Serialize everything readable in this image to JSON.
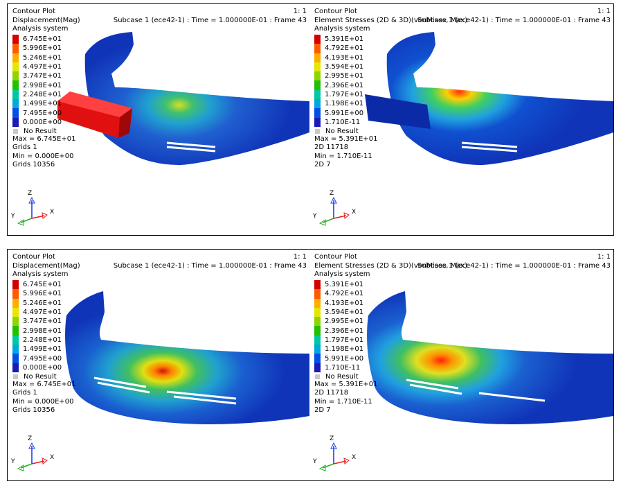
{
  "panels": [
    {
      "title": "Contour Plot",
      "result": "Displacement(Mag)",
      "system": "Analysis system",
      "scale": "1: 1",
      "subcase": "Subcase 1 (ece42-1) : Time = 1.000000E-01 : Frame 43",
      "legend": [
        "6.745E+01",
        "5.996E+01",
        "5.246E+01",
        "4.497E+01",
        "3.747E+01",
        "2.998E+01",
        "2.248E+01",
        "1.499E+01",
        "7.495E+00",
        "0.000E+00"
      ],
      "no_result": "No Result",
      "stats": [
        "Max = 6.745E+01",
        "Grids 1",
        "Min = 0.000E+00",
        "Grids 10356"
      ]
    },
    {
      "title": "Contour Plot",
      "result": "Element Stresses (2D & 3D)(vonMises, Max)",
      "system": "Analysis system",
      "scale": "1: 1",
      "subcase": "Subcase 1 (ece42-1) : Time = 1.000000E-01 : Frame 43",
      "legend": [
        "5.391E+01",
        "4.792E+01",
        "4.193E+01",
        "3.594E+01",
        "2.995E+01",
        "2.396E+01",
        "1.797E+01",
        "1.198E+01",
        "5.991E+00",
        "1.710E-11"
      ],
      "no_result": "No Result",
      "stats": [
        "Max = 5.391E+01",
        "2D 11718",
        "Min = 1.710E-11",
        "2D 7"
      ]
    },
    {
      "title": "Contour Plot",
      "result": "Displacement(Mag)",
      "system": "Analysis system",
      "scale": "1: 1",
      "subcase": "Subcase 1 (ece42-1) : Time = 1.000000E-01 : Frame 43",
      "legend": [
        "6.745E+01",
        "5.996E+01",
        "5.246E+01",
        "4.497E+01",
        "3.747E+01",
        "2.998E+01",
        "2.248E+01",
        "1.499E+01",
        "7.495E+00",
        "0.000E+00"
      ],
      "no_result": "No Result",
      "stats": [
        "Max = 6.745E+01",
        "Grids 1",
        "Min = 0.000E+00",
        "Grids 10356"
      ]
    },
    {
      "title": "Contour Plot",
      "result": "Element Stresses (2D & 3D)(vonMises, Max)",
      "system": "Analysis system",
      "scale": "1: 1",
      "subcase": "Subcase 1 (ece42-1) : Time = 1.000000E-01 : Frame 43",
      "legend": [
        "5.391E+01",
        "4.792E+01",
        "4.193E+01",
        "3.594E+01",
        "2.995E+01",
        "2.396E+01",
        "1.797E+01",
        "1.198E+01",
        "5.991E+00",
        "1.710E-11"
      ],
      "no_result": "No Result",
      "stats": [
        "Max = 5.391E+01",
        "2D 11718",
        "Min = 1.710E-11",
        "2D 7"
      ]
    }
  ],
  "legend_colors": [
    "#d40000",
    "#ff5a00",
    "#ffae00",
    "#e6e600",
    "#8fd400",
    "#22c000",
    "#00c8a0",
    "#00a8e0",
    "#0050e6",
    "#1a1ab4"
  ],
  "axes": {
    "x": "X",
    "y": "Y",
    "z": "Z"
  },
  "colors": {
    "model_base": "#1034b8",
    "model_dark": "#0a2090",
    "impactor": "#e01010",
    "axis_x": "#e02020",
    "axis_y": "#20b020",
    "axis_z": "#2040e0"
  }
}
